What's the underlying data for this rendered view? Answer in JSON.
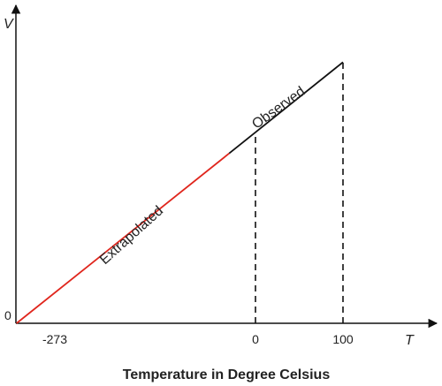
{
  "chart_data": {
    "type": "line",
    "title": "",
    "xlabel": "Temperature in Degree Celsius",
    "ylabel": "",
    "x_axis_symbol": "T",
    "y_axis_symbol": "V",
    "y_origin_label": "0",
    "xlim": [
      -300,
      200
    ],
    "x_ticks": [
      "-273",
      "0",
      "100"
    ],
    "series": [
      {
        "name": "Extrapolated",
        "x": [
          -273,
          -30
        ],
        "y": [
          0,
          0.74
        ],
        "color": "#e0261d",
        "style": "solid"
      },
      {
        "name": "Observed",
        "x": [
          -30,
          100
        ],
        "y": [
          0.74,
          1.137
        ],
        "color": "#111111",
        "style": "solid"
      }
    ],
    "reference_lines": [
      {
        "x": 0,
        "y": 0.832,
        "style": "dashed"
      },
      {
        "x": 100,
        "y": 1.137,
        "style": "dashed"
      }
    ],
    "annotations": [
      "Extrapolated",
      "Observed"
    ],
    "grid": false
  }
}
